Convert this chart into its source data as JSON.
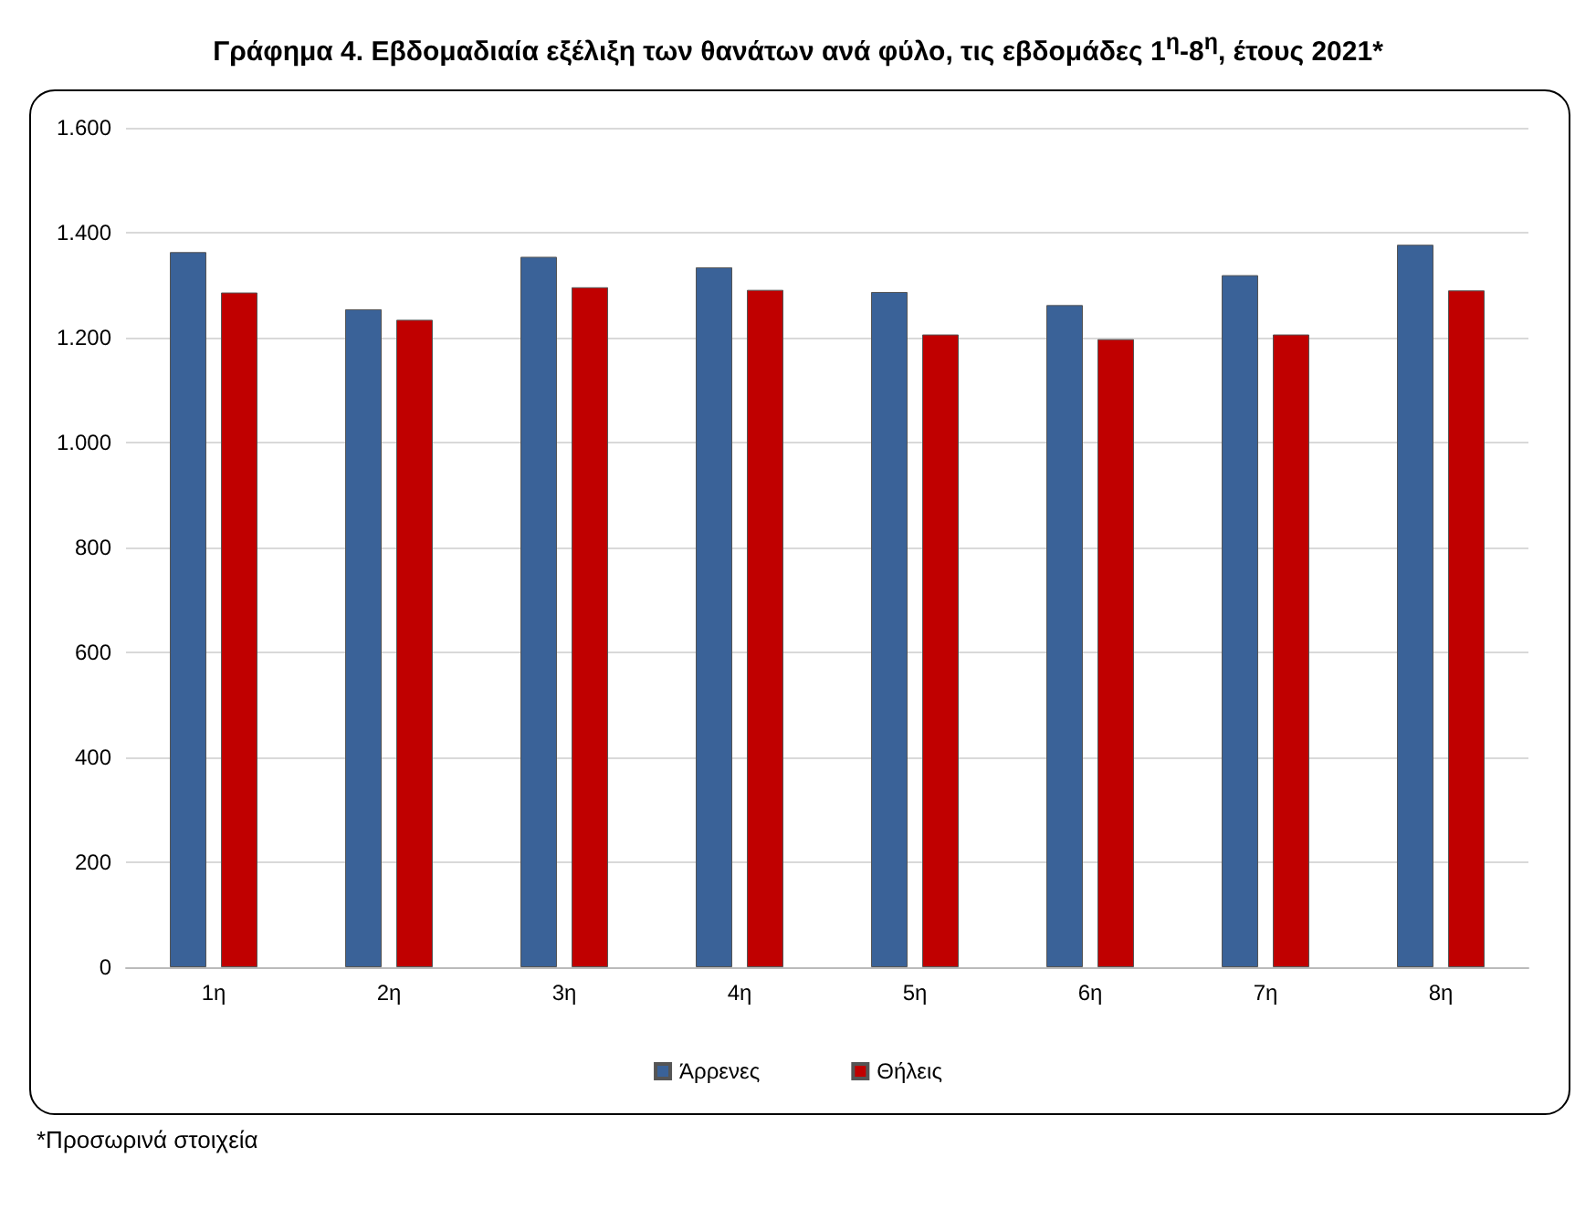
{
  "chart_data": {
    "type": "bar",
    "title": "Γράφημα 4. Εβδομαδιαία εξέλιξη των θανάτων ανά φύλο, τις εβδομάδες 1$^{η}$-8$^{η}$, έτους 2021*",
    "categories": [
      "1η",
      "2η",
      "3η",
      "4η",
      "5η",
      "6η",
      "7η",
      "8η"
    ],
    "series": [
      {
        "name": "Άρρενες",
        "color": "#3a6298",
        "values": [
          1363,
          1254,
          1354,
          1334,
          1287,
          1262,
          1319,
          1377
        ]
      },
      {
        "name": "Θήλεις",
        "color": "#c00000",
        "values": [
          1286,
          1234,
          1296,
          1291,
          1206,
          1197,
          1206,
          1290
        ]
      }
    ],
    "ylim": [
      0,
      1600
    ],
    "yticks": [
      {
        "value": 0,
        "label": "0"
      },
      {
        "value": 200,
        "label": "200"
      },
      {
        "value": 400,
        "label": "400"
      },
      {
        "value": 600,
        "label": "600"
      },
      {
        "value": 800,
        "label": "800"
      },
      {
        "value": 1000,
        "label": "1.000"
      },
      {
        "value": 1200,
        "label": "1.200"
      },
      {
        "value": 1400,
        "label": "1.400"
      },
      {
        "value": 1600,
        "label": "1.600"
      }
    ],
    "grid": "y",
    "legend": "bottom",
    "annotations": [
      "*Προσωρινά στοιχεία"
    ]
  }
}
